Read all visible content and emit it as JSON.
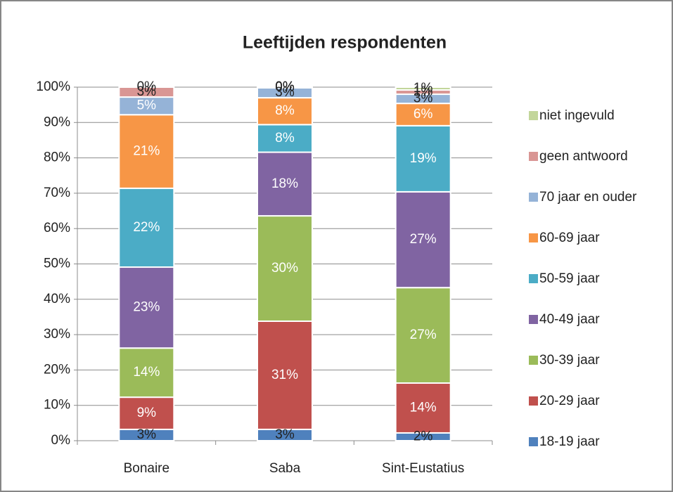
{
  "chart_data": {
    "type": "bar",
    "stacked": true,
    "title": "Leeftijden respondenten",
    "categories": [
      "Bonaire",
      "Saba",
      "Sint-Eustatius"
    ],
    "series": [
      {
        "name": "18-19 jaar",
        "color": "#4f81bd",
        "values": [
          3.2,
          3.2,
          2.2
        ],
        "value_labels": [
          "3%",
          "3%",
          "2%"
        ]
      },
      {
        "name": "20-29 jaar",
        "color": "#c0504d",
        "values": [
          9.1,
          30.6,
          14.1
        ],
        "value_labels": [
          "9%",
          "31%",
          "14%"
        ]
      },
      {
        "name": "30-39 jaar",
        "color": "#9bbb59",
        "values": [
          13.9,
          29.8,
          27.0
        ],
        "value_labels": [
          "14%",
          "30%",
          "27%"
        ]
      },
      {
        "name": "40-49 jaar",
        "color": "#8064a2",
        "values": [
          22.9,
          18.0,
          27.1
        ],
        "value_labels": [
          "23%",
          "18%",
          "27%"
        ]
      },
      {
        "name": "50-59 jaar",
        "color": "#4bacc6",
        "values": [
          22.3,
          7.8,
          18.7
        ],
        "value_labels": [
          "22%",
          "8%",
          "19%"
        ]
      },
      {
        "name": "60-69 jaar",
        "color": "#f79646",
        "values": [
          20.8,
          7.6,
          6.3
        ],
        "value_labels": [
          "21%",
          "8%",
          "6%"
        ]
      },
      {
        "name": "70 jaar en ouder",
        "color": "#95b3d7",
        "values": [
          5.0,
          2.8,
          2.6
        ],
        "value_labels": [
          "5%",
          "3%",
          "3%"
        ]
      },
      {
        "name": "geen antwoord",
        "color": "#d99694",
        "values": [
          2.8,
          0.2,
          1.2
        ],
        "value_labels": [
          "3%",
          "0%",
          "1%"
        ]
      },
      {
        "name": "niet ingevuld",
        "color": "#c3d69b",
        "values": [
          0,
          0,
          0.8
        ],
        "value_labels": [
          "0%",
          "0%",
          "1%"
        ]
      }
    ],
    "ylim": [
      0,
      100
    ],
    "yticks": [
      {
        "value": 0,
        "label": "0%"
      },
      {
        "value": 10,
        "label": "10%"
      },
      {
        "value": 20,
        "label": "20%"
      },
      {
        "value": 30,
        "label": "30%"
      },
      {
        "value": 40,
        "label": "40%"
      },
      {
        "value": 50,
        "label": "50%"
      },
      {
        "value": 60,
        "label": "60%"
      },
      {
        "value": 70,
        "label": "70%"
      },
      {
        "value": 80,
        "label": "80%"
      },
      {
        "value": 90,
        "label": "90%"
      },
      {
        "value": 100,
        "label": "100%"
      }
    ],
    "grid": true,
    "legend": "right"
  }
}
